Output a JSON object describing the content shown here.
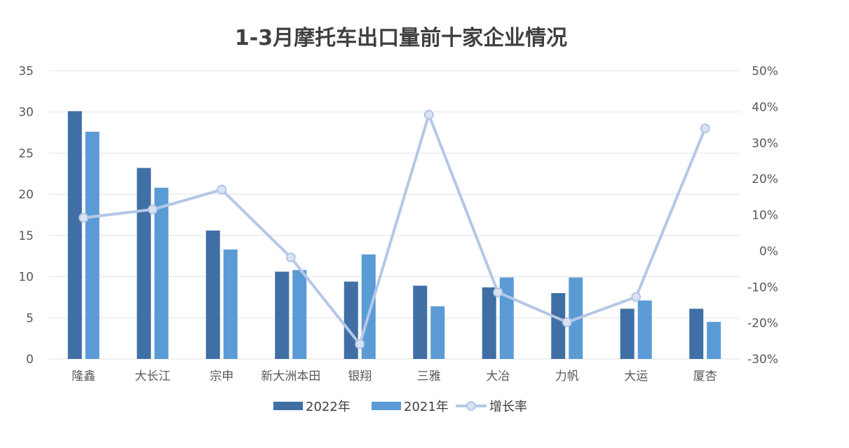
{
  "chart_data": {
    "type": "bar",
    "title": "1-3月摩托车出口量前十家企业情况",
    "categories": [
      "隆鑫",
      "大长江",
      "宗申",
      "新大洲本田",
      "银翔",
      "三雅",
      "大冶",
      "力帆",
      "大运",
      "厦杏"
    ],
    "series": [
      {
        "name": "2022年",
        "type": "bar",
        "axis": "left",
        "color": "#3f6fa5",
        "values": [
          30.1,
          23.2,
          15.6,
          10.6,
          9.4,
          8.9,
          8.7,
          8.0,
          6.1,
          6.1
        ]
      },
      {
        "name": "2021年",
        "type": "bar",
        "axis": "left",
        "color": "#5b9bd5",
        "values": [
          27.6,
          20.8,
          13.3,
          10.8,
          12.7,
          6.4,
          9.9,
          9.9,
          7.1,
          4.5
        ]
      },
      {
        "name": "增长率",
        "type": "line",
        "axis": "right",
        "color": "#b4c7e7",
        "values": [
          9.2,
          11.5,
          17.0,
          -1.8,
          -25.9,
          37.8,
          -11.5,
          -19.8,
          -12.8,
          34.0
        ]
      }
    ],
    "y_left": {
      "min": 0,
      "max": 35,
      "ticks": [
        "0",
        "5",
        "10",
        "15",
        "20",
        "25",
        "30",
        "35"
      ]
    },
    "y_right": {
      "min": -30,
      "max": 50,
      "ticks": [
        "-30%",
        "-20%",
        "-10%",
        "0%",
        "10%",
        "20%",
        "30%",
        "40%",
        "50%"
      ]
    },
    "grid": true,
    "legend_position": "bottom"
  },
  "legend": [
    {
      "label": "2022年",
      "icon": "bar-swatch",
      "color": "#3f6fa5"
    },
    {
      "label": "2021年",
      "icon": "bar-swatch",
      "color": "#5b9bd5"
    },
    {
      "label": "增长率",
      "icon": "line-marker",
      "color": "#b4c7e7"
    }
  ]
}
